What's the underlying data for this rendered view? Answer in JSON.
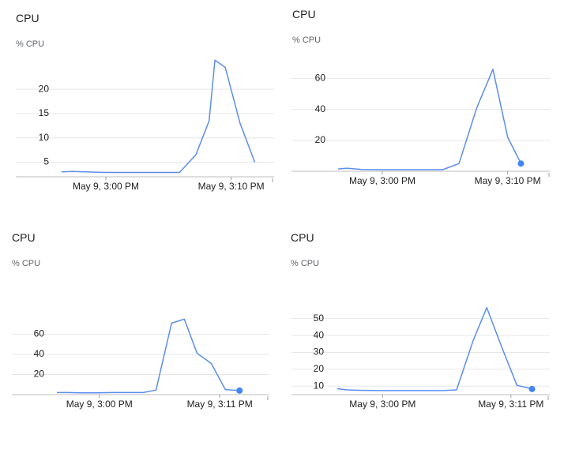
{
  "chart_data": [
    {
      "type": "line",
      "title": "CPU",
      "ylabel": "% CPU",
      "yticks": [
        5,
        10,
        15,
        20
      ],
      "ylim": [
        2,
        27
      ],
      "xlim": [
        0,
        13.5
      ],
      "xticks": [
        {
          "x": 3,
          "label": "May 9, 3:00 PM"
        },
        {
          "x": 11.5,
          "label": "May 9, 3:10 PM"
        }
      ],
      "series": [
        {
          "name": "CPU",
          "color": "#5b8def",
          "x": [
            0,
            0.7,
            1.6,
            3,
            4,
            5,
            6,
            8,
            9.1,
            10,
            10.4,
            11.1,
            12.1,
            13.1
          ],
          "values": [
            3.0,
            3.1,
            3.0,
            2.9,
            2.9,
            2.9,
            2.9,
            2.9,
            6.5,
            13.5,
            26.0,
            24.5,
            13.0,
            5.0
          ],
          "end_marker": false
        }
      ]
    },
    {
      "type": "line",
      "title": "CPU",
      "ylabel": "% CPU",
      "yticks": [
        20,
        40,
        60
      ],
      "ylim": [
        0,
        70
      ],
      "xlim": [
        0,
        13.5
      ],
      "xticks": [
        {
          "x": 3,
          "label": "May 9, 3:00 PM"
        },
        {
          "x": 11.5,
          "label": "May 9, 3:10 PM"
        }
      ],
      "series": [
        {
          "name": "CPU",
          "color": "#5b8def",
          "x": [
            0,
            0.6,
            1.6,
            3,
            4,
            5,
            6.1,
            7.1,
            8.2,
            9.4,
            10.5,
            11.5,
            12.4
          ],
          "values": [
            1.5,
            2.0,
            1.2,
            1.0,
            1.0,
            1.0,
            1.0,
            1.0,
            5.0,
            41.0,
            66.0,
            22.0,
            5.0
          ],
          "end_marker": true
        }
      ]
    },
    {
      "type": "line",
      "title": "CPU",
      "ylabel": "% CPU",
      "yticks": [
        20,
        40,
        60
      ],
      "ylim": [
        0,
        80
      ],
      "xlim": [
        0,
        13.5
      ],
      "xticks": [
        {
          "x": 3,
          "label": "May 9, 3:00 PM"
        },
        {
          "x": 11.5,
          "label": "May 9, 3:11 PM"
        }
      ],
      "series": [
        {
          "name": "CPU",
          "color": "#5b8def",
          "x": [
            0,
            0.8,
            1.6,
            3,
            4,
            5,
            6.1,
            7,
            8.1,
            9,
            9.9,
            10.9,
            11.9,
            12.9
          ],
          "values": [
            2.0,
            2.0,
            1.8,
            1.8,
            2.0,
            2.0,
            2.0,
            4.5,
            71.0,
            75.0,
            41.0,
            31.0,
            5.0,
            4.0
          ],
          "end_marker": true
        }
      ]
    },
    {
      "type": "line",
      "title": "CPU",
      "ylabel": "% CPU",
      "yticks": [
        10,
        20,
        30,
        40,
        50
      ],
      "ylim": [
        5,
        62
      ],
      "xlim": [
        0,
        13.5
      ],
      "xticks": [
        {
          "x": 3,
          "label": "May 9, 3:00 PM"
        },
        {
          "x": 11.5,
          "label": "May 9, 3:11 PM"
        }
      ],
      "series": [
        {
          "name": "CPU",
          "color": "#5b8def",
          "x": [
            0,
            0.6,
            1.6,
            3,
            4,
            5,
            6,
            7,
            7.9,
            9,
            9.9,
            10.9,
            11.9,
            12.9
          ],
          "values": [
            8.5,
            7.8,
            7.5,
            7.4,
            7.4,
            7.4,
            7.4,
            7.4,
            7.8,
            37.0,
            56.5,
            33.0,
            10.5,
            8.3
          ],
          "end_marker": true
        }
      ]
    }
  ]
}
